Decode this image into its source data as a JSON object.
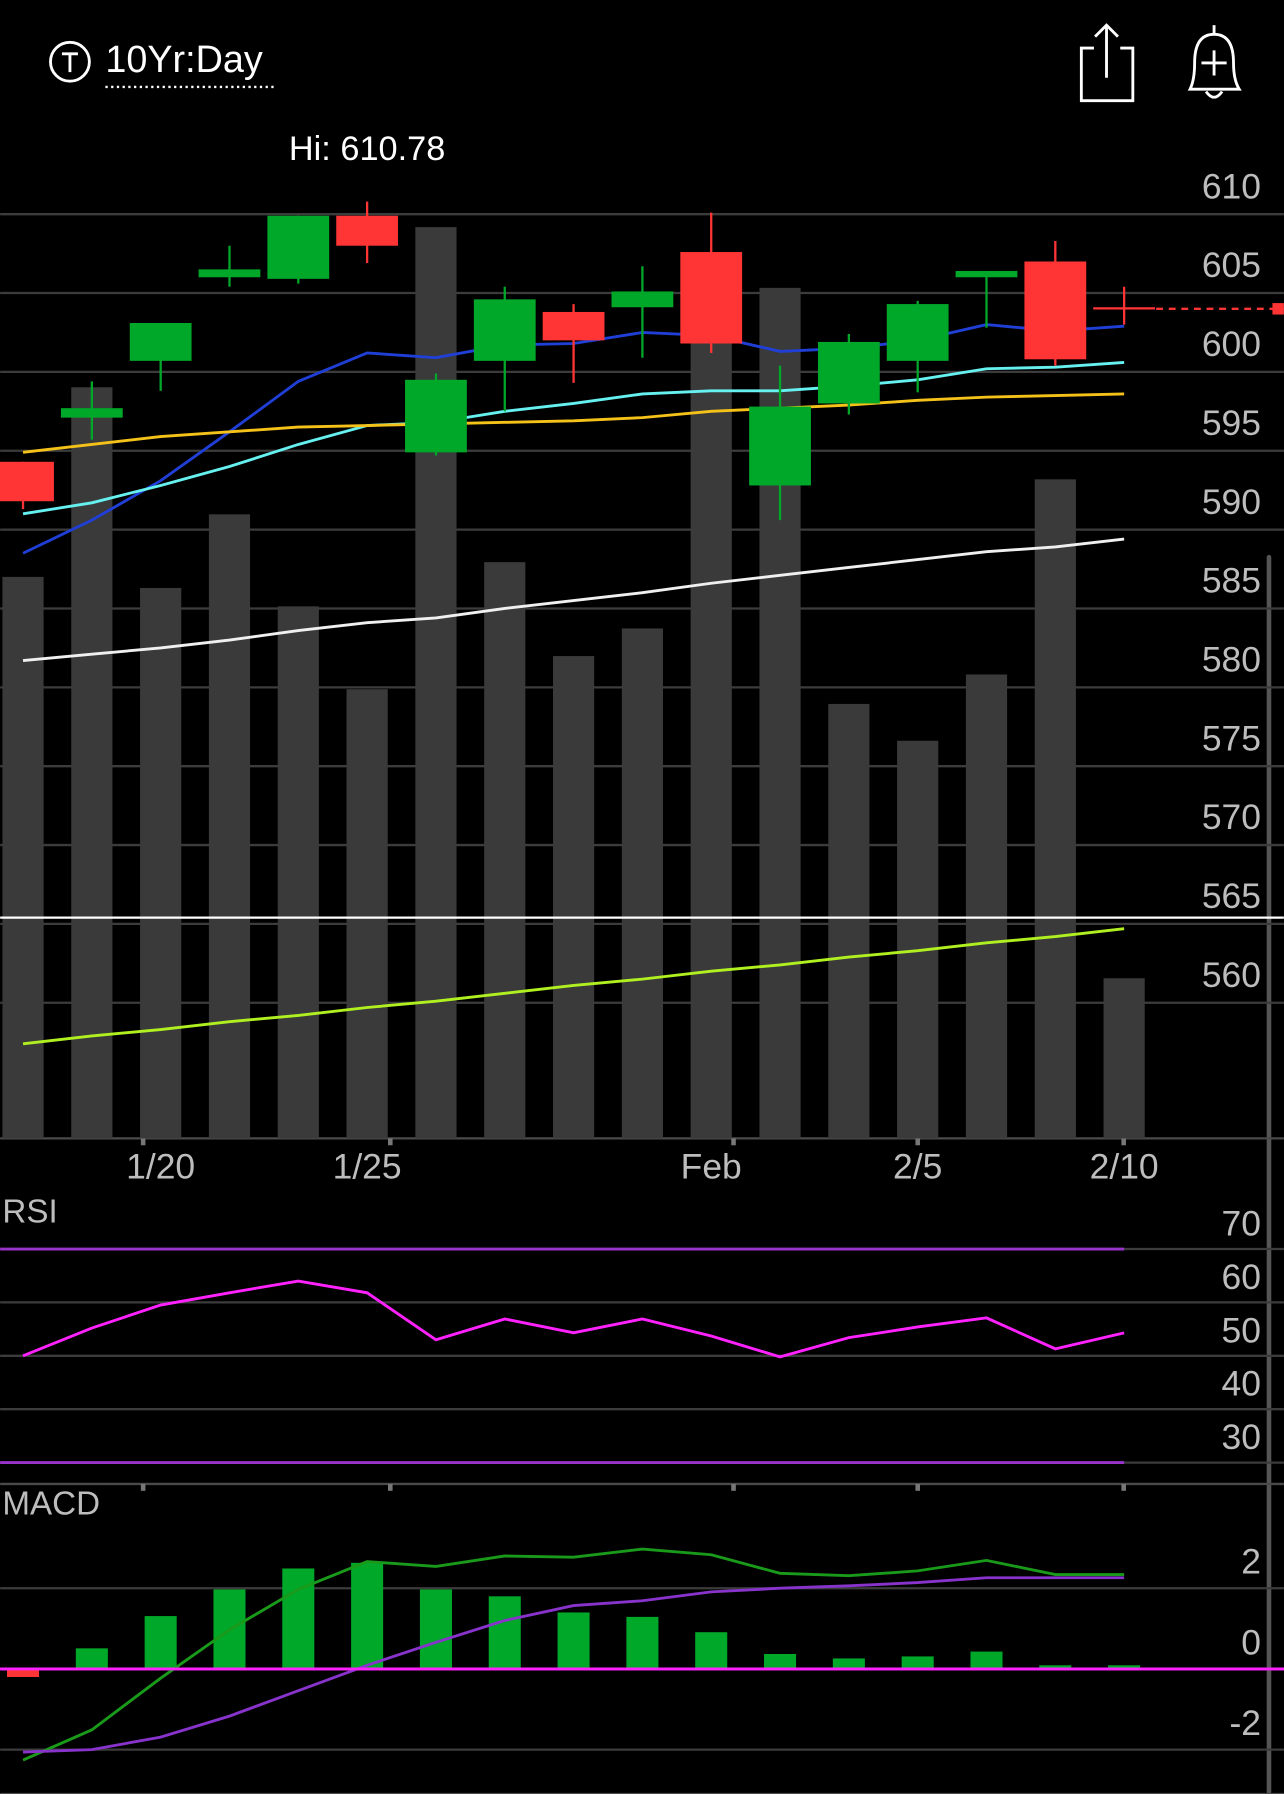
{
  "header": {
    "symbol": "10Yr:Day"
  },
  "chart_data": [
    {
      "type": "candlestick",
      "annotation": "Hi: 610.78",
      "categories": [
        null,
        null,
        "1/20",
        null,
        null,
        "1/25",
        null,
        null,
        null,
        null,
        "Feb",
        null,
        null,
        "2/5",
        null,
        null,
        "2/10"
      ],
      "open": [
        594.3,
        597.1,
        600.7,
        606.0,
        605.9,
        609.9,
        594.9,
        600.7,
        603.8,
        604.1,
        607.6,
        592.8,
        598.0,
        600.7,
        606.0,
        607.0,
        604.1
      ],
      "high": [
        594.3,
        599.4,
        603.1,
        608.0,
        609.9,
        610.8,
        599.9,
        605.4,
        604.3,
        606.7,
        610.1,
        600.4,
        602.4,
        604.5,
        606.4,
        608.3,
        605.4
      ],
      "low": [
        591.3,
        595.7,
        598.8,
        605.4,
        605.6,
        606.9,
        594.7,
        597.5,
        599.3,
        600.9,
        601.2,
        590.6,
        597.3,
        598.7,
        602.8,
        600.4,
        603.0
      ],
      "close": [
        591.8,
        597.7,
        603.1,
        606.5,
        609.9,
        608.0,
        599.5,
        604.6,
        602.0,
        605.1,
        601.8,
        597.8,
        601.9,
        604.3,
        606.4,
        600.8,
        604.0
      ],
      "up_color": "#00a82a",
      "down_color": "#ff3535",
      "series": [
        {
          "color": "#1f3fd6",
          "values": [
            588.5,
            590.6,
            593.1,
            596.2,
            599.4,
            601.2,
            600.9,
            601.7,
            601.8,
            602.5,
            602.3,
            601.3,
            601.5,
            602.0,
            603.0,
            602.6,
            602.9
          ]
        },
        {
          "color": "#66f0f0",
          "values": [
            591.0,
            591.7,
            592.8,
            594.0,
            595.4,
            596.6,
            596.8,
            597.5,
            598.0,
            598.6,
            598.8,
            598.8,
            599.1,
            599.5,
            600.2,
            600.3,
            600.6
          ]
        },
        {
          "color": "#f5c21a",
          "values": [
            594.9,
            595.4,
            595.9,
            596.2,
            596.5,
            596.6,
            596.7,
            596.8,
            596.9,
            597.1,
            597.5,
            597.7,
            597.9,
            598.2,
            598.4,
            598.5,
            598.6
          ]
        },
        {
          "color": "#f0f0f0",
          "values": [
            581.7,
            582.1,
            582.5,
            583.0,
            583.6,
            584.1,
            584.4,
            585.0,
            585.5,
            586.0,
            586.6,
            587.1,
            587.6,
            588.1,
            588.6,
            588.9,
            589.4
          ]
        },
        {
          "color": "#b0f020",
          "values": [
            557.4,
            557.9,
            558.3,
            558.8,
            559.2,
            559.7,
            560.1,
            560.6,
            561.1,
            561.5,
            562.0,
            562.4,
            562.9,
            563.3,
            563.8,
            564.2,
            564.7
          ]
        }
      ],
      "volume": [
        305,
        408,
        299,
        339,
        289,
        244,
        495,
        313,
        262,
        277,
        468,
        462,
        236,
        216,
        252,
        358,
        87
      ],
      "volume_color": "#3a3a3a",
      "volume_lim": [
        0,
        550
      ],
      "hline": 565.4,
      "ylim": [
        551.4,
        615.6
      ],
      "yticks": [
        560,
        565,
        570,
        575,
        580,
        585,
        590,
        595,
        600,
        605,
        610
      ],
      "grid": true
    },
    {
      "type": "line",
      "title": "RSI",
      "series": [
        {
          "color": "#ff22ff",
          "values": [
            50.0,
            55.2,
            59.5,
            61.8,
            64.0,
            61.8,
            53.0,
            56.9,
            54.3,
            56.9,
            53.7,
            49.8,
            53.4,
            55.4,
            57.1,
            51.3,
            54.3
          ]
        }
      ],
      "levels": [
        70,
        30
      ],
      "level_color": "#9a33cc",
      "ylim": [
        26,
        80
      ],
      "yticks": [
        30,
        40,
        50,
        60,
        70
      ],
      "grid": true
    },
    {
      "type": "macd",
      "title": "MACD",
      "histogram": [
        -0.2,
        0.51,
        1.31,
        1.97,
        2.49,
        2.63,
        1.97,
        1.8,
        1.4,
        1.29,
        0.91,
        0.37,
        0.26,
        0.31,
        0.43,
        0.09,
        0.09
      ],
      "up_color": "#00a82a",
      "down_color": "#ff3535",
      "series": [
        {
          "color": "#1a9a1a",
          "values": [
            -2.26,
            -1.51,
            -0.23,
            0.97,
            1.97,
            2.66,
            2.54,
            2.8,
            2.77,
            2.97,
            2.83,
            2.37,
            2.31,
            2.43,
            2.69,
            2.34,
            2.34
          ]
        },
        {
          "color": "#8833cc",
          "values": [
            -2.06,
            -2.0,
            -1.69,
            -1.17,
            -0.54,
            0.09,
            0.66,
            1.2,
            1.57,
            1.69,
            1.91,
            2.0,
            2.06,
            2.14,
            2.26,
            2.26,
            2.26
          ]
        }
      ],
      "levels": [
        0
      ],
      "level_color": "#ff22ff",
      "ylim": [
        -3.1,
        4.5
      ],
      "yticks": [
        -2,
        0,
        2
      ],
      "grid": true
    }
  ]
}
